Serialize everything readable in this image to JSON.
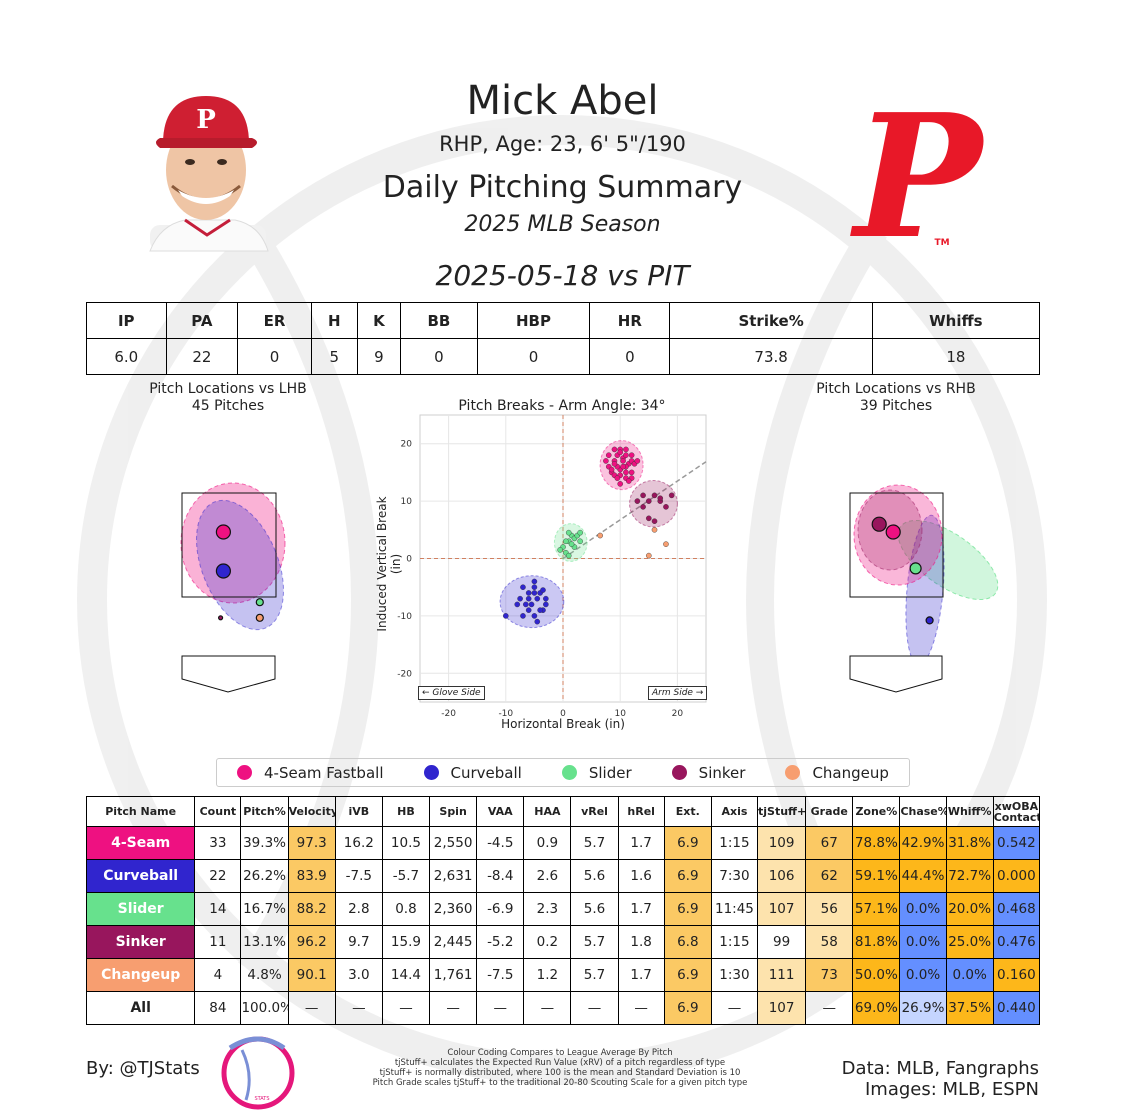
{
  "header": {
    "player_name": "Mick Abel",
    "player_info": "RHP, Age: 23, 6' 5\"/190",
    "report_title": "Daily Pitching Summary",
    "season": "2025 MLB Season",
    "game": "2025-05-18 vs PIT"
  },
  "stat_line": {
    "headers": [
      "IP",
      "PA",
      "ER",
      "H",
      "K",
      "BB",
      "HBP",
      "HR",
      "Strike%",
      "Whiffs"
    ],
    "values": [
      "6.0",
      "22",
      "0",
      "5",
      "9",
      "0",
      "0",
      "0",
      "73.8",
      "18"
    ]
  },
  "lhb_plot": {
    "title": "Pitch Locations vs LHB",
    "subtitle": "45 Pitches"
  },
  "rhb_plot": {
    "title": "Pitch Locations vs RHB",
    "subtitle": "39 Pitches"
  },
  "colors": {
    "4-Seam Fastball": "#ee1181",
    "Curveball": "#3025ce",
    "Slider": "#67e18d",
    "Sinker": "#98165d",
    "Changeup": "#f79e70",
    "good_strong": "#fdb71a",
    "good_mid": "#fbc964",
    "good_light": "#fde3ad",
    "bad_strong": "#648fff",
    "bad_light": "#c5d5ff",
    "phillies_red": "#e81828"
  },
  "chart_data": {
    "type": "scatter",
    "title": "Pitch Breaks - Arm Angle: 34°",
    "xlabel": "Horizontal Break (in)",
    "ylabel": "Induced Vertical Break (in)",
    "xlim": [
      -25,
      25
    ],
    "ylim": [
      -25,
      25
    ],
    "xticks": [
      -20,
      -10,
      0,
      10,
      20
    ],
    "yticks": [
      -20,
      -10,
      0,
      10,
      20
    ],
    "grid": true,
    "glove_side_label": "← Glove Side",
    "arm_side_label": "Arm Side →",
    "arm_angle_line_slope_deg": 34,
    "series": [
      {
        "name": "4-Seam Fastball",
        "color_key": "4-Seam Fastball",
        "x": [
          8,
          9,
          9.5,
          10,
          10.5,
          11,
          11.5,
          12,
          8.5,
          9,
          10,
          11,
          12,
          12.5,
          7.5,
          9,
          10,
          11,
          10,
          9.5,
          8,
          11,
          12,
          10.5,
          9,
          10,
          11,
          12,
          13,
          8.5,
          9.5,
          10.5,
          11.5
        ],
        "y": [
          16,
          17,
          18,
          19,
          17.5,
          18,
          16.5,
          17,
          15,
          14.5,
          15.5,
          16,
          15,
          16.5,
          17,
          19,
          18.5,
          14,
          13,
          16,
          18,
          19,
          14,
          17,
          16.5,
          14.5,
          15,
          18,
          17,
          15.5,
          14,
          16,
          13.5
        ]
      },
      {
        "name": "Curveball",
        "color_key": "Curveball",
        "x": [
          -7,
          -6,
          -5,
          -4,
          -3,
          -7.5,
          -6.5,
          -5.5,
          -4.5,
          -3.5,
          -8,
          -6,
          -5,
          -4,
          -3,
          -5,
          -6,
          -7,
          -4.5,
          -10,
          -5,
          -3.5
        ],
        "y": [
          -5,
          -6,
          -5,
          -6,
          -7,
          -7,
          -8,
          -8,
          -7,
          -9,
          -8,
          -9,
          -10,
          -9,
          -8,
          -6,
          -7,
          -10,
          -11,
          -10,
          -4,
          -5.5
        ]
      },
      {
        "name": "Slider",
        "color_key": "Slider",
        "x": [
          0,
          1,
          1.5,
          2,
          2.5,
          3,
          0.5,
          1,
          2,
          3,
          0.5,
          1,
          -0.5,
          1.5
        ],
        "y": [
          2,
          3,
          4,
          3.5,
          4,
          3,
          1,
          0.5,
          2,
          4.5,
          3,
          4.5,
          1.5,
          2.5
        ]
      },
      {
        "name": "Sinker",
        "color_key": "Sinker",
        "x": [
          13,
          14,
          15,
          16,
          17,
          18,
          19,
          15,
          16,
          14,
          17
        ],
        "y": [
          10,
          9,
          10,
          11,
          10,
          9,
          11,
          7,
          6.5,
          11,
          10.5
        ]
      },
      {
        "name": "Changeup",
        "color_key": "Changeup",
        "x": [
          6.5,
          15,
          16,
          18
        ],
        "y": [
          4,
          0.5,
          5,
          2.5
        ]
      }
    ],
    "location_plots": [
      {
        "side": "LHB",
        "points": [
          {
            "pitch": "4-Seam Fastball",
            "x": -0.1,
            "y": 2.75,
            "size": "large"
          },
          {
            "pitch": "Curveball",
            "x": -0.1,
            "y": 2.0,
            "size": "large"
          },
          {
            "pitch": "Slider",
            "x": 0.55,
            "y": 1.4,
            "size": "small"
          },
          {
            "pitch": "Changeup",
            "x": 0.55,
            "y": 1.1,
            "size": "small"
          },
          {
            "pitch": "Sinker",
            "x": -0.15,
            "y": 1.1,
            "size": "tiny"
          }
        ]
      },
      {
        "side": "RHB",
        "points": [
          {
            "pitch": "Sinker",
            "x": -0.3,
            "y": 2.9,
            "size": "large"
          },
          {
            "pitch": "4-Seam Fastball",
            "x": -0.05,
            "y": 2.75,
            "size": "large"
          },
          {
            "pitch": "Slider",
            "x": 0.35,
            "y": 2.05,
            "size": "medium"
          },
          {
            "pitch": "Curveball",
            "x": 0.6,
            "y": 1.05,
            "size": "small"
          }
        ]
      }
    ]
  },
  "pitch_table": {
    "headers": [
      "Pitch Name",
      "Count",
      "Pitch%",
      "Velocity",
      "iVB",
      "HB",
      "Spin",
      "VAA",
      "HAA",
      "vRel",
      "hRel",
      "Ext.",
      "Axis",
      "tjStuff+",
      "Grade",
      "Zone%",
      "Chase%",
      "Whiff%",
      "xwOBA Contact"
    ],
    "rows": [
      {
        "name": "4-Seam",
        "color_key": "4-Seam Fastball",
        "cells": [
          "33",
          "39.3%",
          "97.3",
          "16.2",
          "10.5",
          "2,550",
          "-4.5",
          "0.9",
          "5.7",
          "1.7",
          "6.9",
          "1:15",
          "109",
          "67",
          "78.8%",
          "42.9%",
          "31.8%",
          "0.542"
        ],
        "shades": [
          "",
          "",
          "good_mid",
          "",
          "",
          "",
          "",
          "",
          "",
          "",
          "good_mid",
          "",
          "good_light",
          "good_mid",
          "good_strong",
          "good_strong",
          "good_strong",
          "bad_strong"
        ]
      },
      {
        "name": "Curveball",
        "color_key": "Curveball",
        "cells": [
          "22",
          "26.2%",
          "83.9",
          "-7.5",
          "-5.7",
          "2,631",
          "-8.4",
          "2.6",
          "5.6",
          "1.6",
          "6.9",
          "7:30",
          "106",
          "62",
          "59.1%",
          "44.4%",
          "72.7%",
          "0.000"
        ],
        "shades": [
          "",
          "",
          "good_mid",
          "",
          "",
          "",
          "",
          "",
          "",
          "",
          "good_mid",
          "",
          "good_light",
          "good_mid",
          "good_strong",
          "good_strong",
          "good_strong",
          "good_strong"
        ]
      },
      {
        "name": "Slider",
        "color_key": "Slider",
        "cells": [
          "14",
          "16.7%",
          "88.2",
          "2.8",
          "0.8",
          "2,360",
          "-6.9",
          "2.3",
          "5.6",
          "1.7",
          "6.9",
          "11:45",
          "107",
          "56",
          "57.1%",
          "0.0%",
          "20.0%",
          "0.468"
        ],
        "shades": [
          "",
          "",
          "good_mid",
          "",
          "",
          "",
          "",
          "",
          "",
          "",
          "good_mid",
          "",
          "good_light",
          "good_light",
          "good_strong",
          "bad_strong",
          "good_strong",
          "bad_strong"
        ]
      },
      {
        "name": "Sinker",
        "color_key": "Sinker",
        "cells": [
          "11",
          "13.1%",
          "96.2",
          "9.7",
          "15.9",
          "2,445",
          "-5.2",
          "0.2",
          "5.7",
          "1.8",
          "6.8",
          "1:15",
          "99",
          "58",
          "81.8%",
          "0.0%",
          "25.0%",
          "0.476"
        ],
        "shades": [
          "",
          "",
          "good_mid",
          "",
          "",
          "",
          "",
          "",
          "",
          "",
          "good_mid",
          "",
          "",
          "good_light",
          "good_strong",
          "bad_strong",
          "good_strong",
          "bad_strong"
        ]
      },
      {
        "name": "Changeup",
        "color_key": "Changeup",
        "cells": [
          "4",
          "4.8%",
          "90.1",
          "3.0",
          "14.4",
          "1,761",
          "-7.5",
          "1.2",
          "5.7",
          "1.7",
          "6.9",
          "1:30",
          "111",
          "73",
          "50.0%",
          "0.0%",
          "0.0%",
          "0.160"
        ],
        "shades": [
          "",
          "",
          "good_mid",
          "",
          "",
          "",
          "",
          "",
          "",
          "",
          "good_mid",
          "",
          "good_light",
          "good_mid",
          "good_strong",
          "bad_strong",
          "bad_strong",
          "good_strong"
        ]
      },
      {
        "name": "All",
        "color_key": "",
        "cells": [
          "84",
          "100.0%",
          "—",
          "—",
          "—",
          "—",
          "—",
          "—",
          "—",
          "—",
          "6.9",
          "—",
          "107",
          "—",
          "69.0%",
          "26.9%",
          "37.5%",
          "0.440"
        ],
        "shades": [
          "",
          "",
          "",
          "",
          "",
          "",
          "",
          "",
          "",
          "",
          "good_mid",
          "",
          "good_light",
          "",
          "good_strong",
          "bad_light",
          "good_strong",
          "bad_strong"
        ]
      }
    ]
  },
  "footer": {
    "by": "By: @TJStats",
    "logo_text": "STATS",
    "notes": [
      "Colour Coding Compares to League Average By Pitch",
      "tjStuff+ calculates the Expected Run Value (xRV) of a pitch regardless of type",
      "tjStuff+ is normally distributed, where 100 is the mean and Standard Deviation is 10",
      "Pitch Grade scales tjStuff+ to the traditional 20-80 Scouting Scale for a given pitch type"
    ],
    "data_source": "Data: MLB, Fangraphs",
    "images_source": "Images: MLB, ESPN"
  },
  "logo": {
    "letter": "P",
    "trademark": "TM"
  }
}
